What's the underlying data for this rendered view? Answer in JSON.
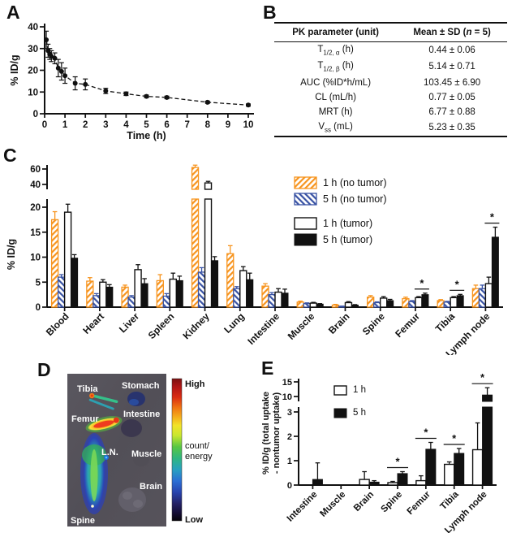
{
  "panels": {
    "a": "A",
    "b": "B",
    "c": "C",
    "d": "D",
    "e": "E"
  },
  "panelB": {
    "col1_header": "PK parameter (unit)",
    "col2_header_parts": [
      [
        "t",
        "Mean ± SD ("
      ],
      [
        "i",
        "n"
      ],
      [
        "t",
        " = 5)"
      ]
    ],
    "rows": [
      {
        "param": [
          [
            "t",
            "T"
          ],
          [
            "sub",
            "1/2, α"
          ],
          [
            "t",
            " (h)"
          ]
        ],
        "value": "0.44 ± 0.06"
      },
      {
        "param": [
          [
            "t",
            "T"
          ],
          [
            "sub",
            "1/2, β"
          ],
          [
            "t",
            " (h)"
          ]
        ],
        "value": "5.14 ± 0.71"
      },
      {
        "param": [
          [
            "t",
            "AUC (%ID*h/mL)"
          ]
        ],
        "value": "103.45 ± 6.90"
      },
      {
        "param": [
          [
            "t",
            "CL (mL/h)"
          ]
        ],
        "value": "0.77 ± 0.05"
      },
      {
        "param": [
          [
            "t",
            "MRT (h)"
          ]
        ],
        "value": "6.77 ± 0.88"
      },
      {
        "param": [
          [
            "t",
            "V"
          ],
          [
            "sub",
            "ss"
          ],
          [
            "t",
            " (mL)"
          ]
        ],
        "value": "5.23 ± 0.35"
      }
    ]
  },
  "panelD": {
    "organ_labels": [
      "Tibia",
      "Stomach",
      "Femur",
      "Intestine",
      "L.N.",
      "Muscle",
      "Brain",
      "Spine"
    ],
    "scale_high": "High",
    "scale_low": "Low",
    "scale_unit_line1": "count/",
    "scale_unit_line2": "energy"
  },
  "chart_data": [
    {
      "id": "A",
      "type": "line",
      "title": "",
      "xlabel": "Time (h)",
      "ylabel": "% ID/g",
      "xlim": [
        0,
        10
      ],
      "ylim": [
        0,
        40
      ],
      "xticks": [
        0,
        1,
        2,
        3,
        4,
        5,
        6,
        7,
        8,
        9,
        10
      ],
      "yticks": [
        0,
        10,
        20,
        30,
        40
      ],
      "line_style": "dashed",
      "marker": "filled-circle",
      "color": "#111111",
      "x": [
        0.083,
        0.17,
        0.25,
        0.33,
        0.5,
        0.67,
        0.83,
        1,
        1.5,
        2,
        3,
        4,
        5,
        6,
        8,
        10
      ],
      "y": [
        34,
        29,
        27.5,
        26.5,
        25.5,
        21,
        19.5,
        17.5,
        14,
        13.5,
        10.5,
        9.2,
        8,
        7.5,
        5.3,
        4
      ],
      "err": [
        4,
        3,
        2.5,
        2.5,
        2.5,
        4,
        4,
        3.5,
        3,
        2.5,
        1.2,
        0.8,
        0.6,
        0.6,
        0.5,
        0.5
      ]
    },
    {
      "id": "C",
      "type": "bar",
      "ylabel": "% ID/g",
      "broken_axis": {
        "lower_range": [
          0,
          22
        ],
        "upper_range": [
          36,
          66
        ]
      },
      "yticks_lower": [
        0,
        5,
        10,
        15,
        20
      ],
      "yticks_upper": [
        40,
        60
      ],
      "categories": [
        "Blood",
        "Heart",
        "Liver",
        "Spleen",
        "Kidney",
        "Lung",
        "Intestine",
        "Muscle",
        "Brain",
        "Spine",
        "Femur",
        "Tibia",
        "Lymph node"
      ],
      "series": [
        {
          "name": "1 h (no tumor)",
          "style": "hatch-orange",
          "color": "#F7941E",
          "values": [
            17.5,
            5.2,
            4.0,
            5.3,
            62,
            10.7,
            4.2,
            1.0,
            0.4,
            2.0,
            1.7,
            1.3,
            3.7
          ],
          "errors": [
            1.6,
            0.7,
            0.4,
            1.2,
            3,
            1.6,
            0.5,
            0.2,
            0.15,
            0.3,
            0.3,
            0.2,
            0.7
          ]
        },
        {
          "name": "5 h (no tumor)",
          "style": "hatch-blue",
          "color": "#3953A4",
          "values": [
            6.0,
            2.3,
            2.0,
            2.2,
            7.0,
            3.7,
            2.5,
            0.7,
            0.15,
            0.9,
            1.1,
            1.0,
            3.7
          ],
          "errors": [
            0.5,
            0.4,
            0.3,
            0.5,
            0.9,
            0.4,
            0.4,
            0.15,
            0.05,
            0.15,
            0.2,
            0.15,
            0.7
          ]
        },
        {
          "name": "1 h (tumor)",
          "style": "open",
          "color": "#FFFFFF",
          "values": [
            19,
            5.0,
            7.5,
            5.6,
            42,
            7.3,
            3.0,
            0.8,
            0.9,
            1.8,
            1.9,
            1.9,
            4.7
          ],
          "errors": [
            1.6,
            0.5,
            1.0,
            1.2,
            2,
            0.8,
            0.7,
            0.15,
            0.2,
            0.3,
            0.2,
            0.2,
            1.3
          ]
        },
        {
          "name": "5 h (tumor)",
          "style": "solid",
          "color": "#111111",
          "values": [
            9.8,
            4.0,
            4.7,
            5.3,
            9.3,
            5.5,
            2.8,
            0.6,
            0.4,
            1.3,
            2.5,
            2.3,
            14
          ],
          "errors": [
            0.7,
            0.5,
            1.0,
            0.9,
            0.8,
            1.3,
            0.8,
            0.1,
            0.1,
            0.25,
            0.3,
            0.25,
            2
          ]
        }
      ],
      "significance": [
        {
          "category": "Femur",
          "label": "*"
        },
        {
          "category": "Tibia",
          "label": "*"
        },
        {
          "category": "Lymph node",
          "label": "*"
        }
      ],
      "legend_position": "upper-middle"
    },
    {
      "id": "E",
      "type": "bar",
      "ylabel": "% ID/g (total uptake\n- nontumor uptake)",
      "broken_axis": {
        "lower_range": [
          0,
          3.2
        ],
        "upper_range": [
          8.5,
          16
        ]
      },
      "yticks_lower": [
        0,
        1,
        2,
        3
      ],
      "yticks_upper": [
        10,
        15
      ],
      "categories": [
        "Intestine",
        "Muscle",
        "Brain",
        "Spine",
        "Femur",
        "Tibia",
        "Lymph node"
      ],
      "series": [
        {
          "name": "1 h",
          "style": "open",
          "color": "#FFFFFF",
          "values": [
            0,
            0,
            0.23,
            0.1,
            0.18,
            0.85,
            1.45
          ],
          "errors": [
            0,
            0,
            0.32,
            0.05,
            0.2,
            0.1,
            1.1
          ]
        },
        {
          "name": "5 h",
          "style": "solid",
          "color": "#111111",
          "values": [
            0.23,
            0,
            0.12,
            0.47,
            1.47,
            1.3,
            10.5
          ],
          "errors": [
            0.68,
            0,
            0.06,
            0.08,
            0.28,
            0.2,
            2.5
          ]
        }
      ],
      "significance": [
        {
          "category": "Spine",
          "label": "*"
        },
        {
          "category": "Femur",
          "label": "*"
        },
        {
          "category": "Tibia",
          "label": "*"
        },
        {
          "category": "Lymph node",
          "label": "*"
        }
      ],
      "legend_position": "upper-left"
    }
  ]
}
